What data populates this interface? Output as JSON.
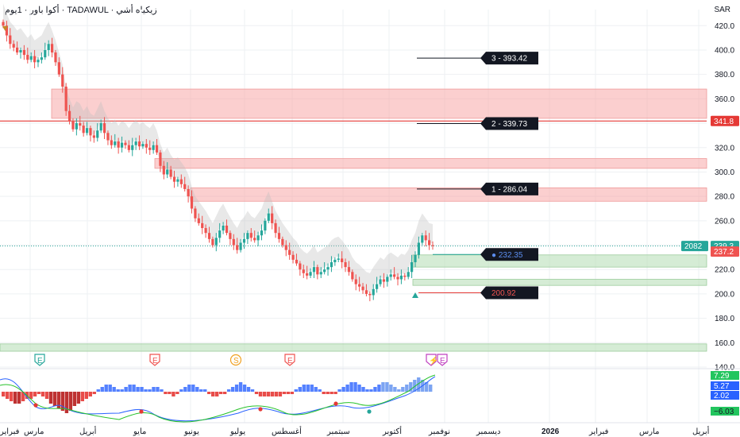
{
  "header": {
    "title": "أكوا باور · 1يوم · TADAWUL · زيكياه أشي",
    "currency": "SAR"
  },
  "colors": {
    "up": "#26a69a",
    "down": "#ef5350",
    "zone_red": "#f7a8a8",
    "zone_green": "#b9dfb9",
    "label_bg": "#131722",
    "last_price": "#26a69a",
    "red_level": "#e53935"
  },
  "chart_data": {
    "type": "candlestick",
    "y_axis": {
      "ticks": [
        420.0,
        400.0,
        380.0,
        360.0,
        340.0,
        320.0,
        300.0,
        280.0,
        260.0,
        240.0,
        220.0,
        200.0,
        180.0,
        160.0,
        140.0
      ],
      "range": [
        140,
        428
      ]
    },
    "x_axis": {
      "labels": [
        "فبراير",
        "مارس",
        "أبريل",
        "مايو",
        "يونيو",
        "يوليو",
        "أغسطس",
        "سبتمبر",
        "أكتوبر",
        "نوفمبر",
        "ديسمبر",
        "2026",
        "فبراير",
        "مارس",
        "أبريل"
      ]
    },
    "price_closes": [
      420,
      412,
      405,
      402,
      398,
      400,
      396,
      392,
      395,
      390,
      392,
      394,
      400,
      405,
      398,
      390,
      380,
      370,
      350,
      342,
      335,
      340,
      338,
      332,
      336,
      330,
      328,
      334,
      340,
      332,
      326,
      322,
      325,
      320,
      324,
      322,
      318,
      322,
      325,
      321,
      323,
      320,
      318,
      322,
      316,
      305,
      298,
      302,
      296,
      292,
      294,
      290,
      286,
      280,
      270,
      262,
      258,
      254,
      250,
      245,
      240,
      246,
      252,
      256,
      250,
      245,
      240,
      236,
      242,
      245,
      250,
      246,
      244,
      248,
      252,
      260,
      266,
      258,
      250,
      245,
      240,
      236,
      232,
      228,
      225,
      220,
      217,
      215,
      218,
      222,
      216,
      218,
      220,
      222,
      226,
      228,
      229,
      226,
      222,
      218,
      212,
      208,
      206,
      203,
      200,
      199,
      204,
      208,
      212,
      210,
      214,
      216,
      214,
      212,
      215,
      214,
      218,
      226,
      232,
      242,
      248,
      244,
      240,
      239.3
    ],
    "levels": [
      {
        "label": "3 - 393.42",
        "value": 393.42
      },
      {
        "label": "2 - 339.73",
        "value": 339.73
      },
      {
        "label": "1 - 286.04",
        "value": 286.04
      }
    ],
    "entry_label": "232.35",
    "stop_label": "200.92",
    "red_line": {
      "label": "341.8",
      "value": 341.8
    },
    "last_price": {
      "label": "239.3",
      "value": 239.3,
      "countdown": "2082"
    },
    "marker_price": {
      "label": "237.2",
      "value": 237.2
    },
    "red_zones": [
      [
        344,
        368
      ],
      [
        303,
        311
      ],
      [
        276,
        287
      ]
    ],
    "green_zones": [
      [
        222,
        232
      ],
      [
        207,
        212
      ],
      [
        153,
        159
      ]
    ],
    "events": [
      "E",
      "E",
      "S",
      "E",
      "⚡",
      "E"
    ],
    "oscillator": {
      "values": [
        "7.29",
        "5.27",
        "2.02",
        "−6.03"
      ],
      "histogram": [
        -2,
        -3,
        -4,
        -5,
        -5,
        -4,
        -3,
        -3,
        -2,
        -1,
        -2,
        -3,
        -5,
        -6,
        -7,
        -8,
        -9,
        -8,
        -6,
        -5,
        -4,
        -3,
        -2,
        -1,
        1,
        2,
        3,
        3,
        2,
        1,
        1,
        2,
        3,
        3,
        2,
        2,
        1,
        1,
        2,
        2,
        1,
        -1,
        -1,
        -2,
        -1,
        1,
        2,
        3,
        3,
        2,
        1,
        1,
        -1,
        -2,
        -2,
        -1,
        -1,
        1,
        2,
        3,
        4,
        3,
        2,
        1,
        -1,
        -2,
        -2,
        -2,
        -2,
        -2,
        -2,
        -1,
        -1,
        -1,
        1,
        2,
        3,
        3,
        3,
        2,
        1,
        -1,
        -1,
        -1,
        -1,
        1,
        2,
        3,
        4,
        4,
        3,
        2,
        1,
        1,
        2,
        3,
        4,
        4,
        3,
        2,
        1,
        2,
        3,
        4,
        5,
        6,
        5,
        4,
        3
      ]
    }
  }
}
